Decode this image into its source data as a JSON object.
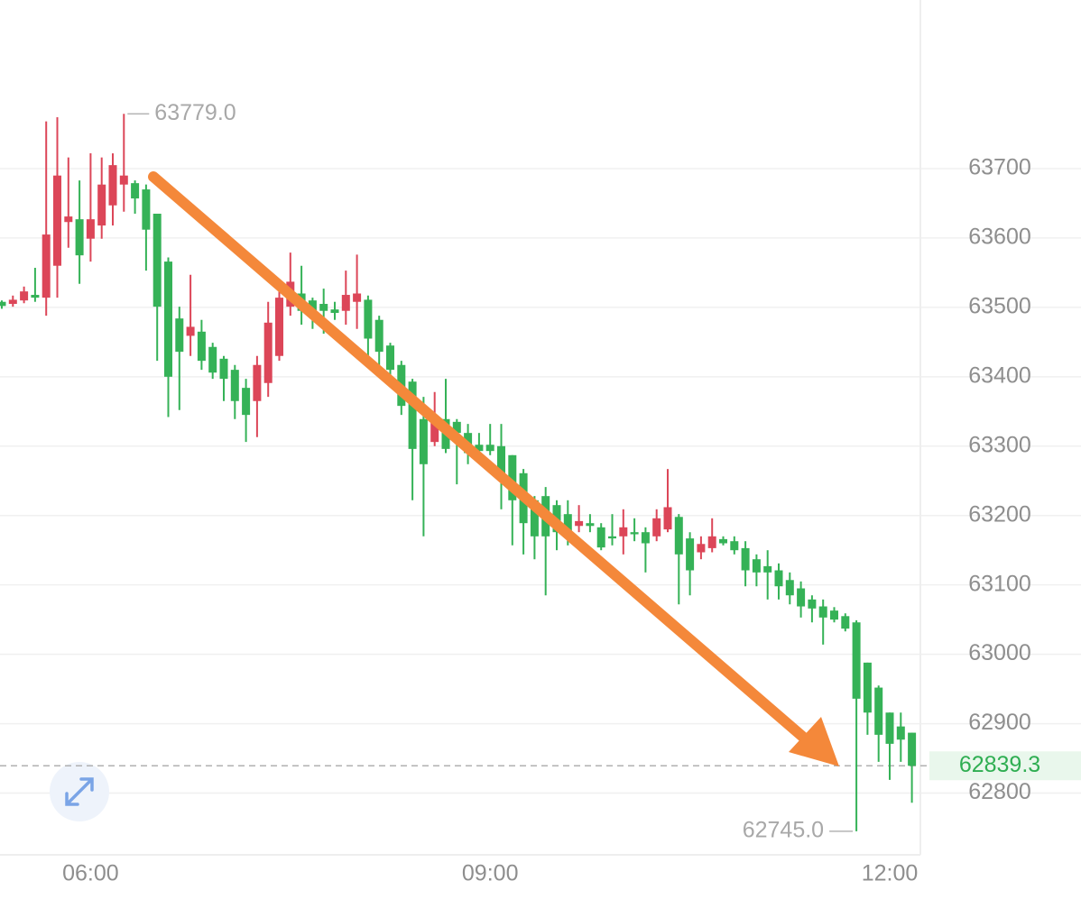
{
  "chart_data": {
    "type": "candlestick",
    "categories": [
      null,
      null,
      null,
      null,
      null,
      null,
      null,
      null,
      "06:00",
      null,
      null,
      null,
      null,
      null,
      null,
      null,
      null,
      null,
      null,
      null,
      null,
      null,
      null,
      null,
      null,
      null,
      null,
      null,
      null,
      null,
      null,
      null,
      null,
      null,
      null,
      null,
      null,
      null,
      null,
      null,
      null,
      null,
      null,
      null,
      "09:00",
      null,
      null,
      null,
      null,
      null,
      null,
      null,
      null,
      null,
      null,
      null,
      null,
      null,
      null,
      null,
      null,
      null,
      null,
      null,
      null,
      null,
      null,
      null,
      null,
      null,
      null,
      null,
      null,
      null,
      null,
      null,
      null,
      null,
      null,
      null,
      "12:00",
      null,
      null
    ],
    "open": [
      63508,
      63505,
      63510,
      63518,
      63514,
      63560,
      63623,
      63627,
      63599,
      63618,
      63647,
      63677,
      63679,
      63670,
      63635,
      63566,
      63484,
      63459,
      63465,
      63443,
      63426,
      63410,
      63384,
      63365,
      63391,
      63430,
      63501,
      63520,
      63510,
      63505,
      63497,
      63495,
      63508,
      63511,
      63482,
      63445,
      63417,
      63393,
      63339,
      63306,
      63339,
      63335,
      63319,
      63302,
      63302,
      63300,
      63287,
      63261,
      63222,
      63228,
      63215,
      63202,
      63185,
      63189,
      63183,
      63170,
      63170,
      63176,
      63176,
      63170,
      63180,
      63198,
      63167,
      63147,
      63153,
      63166,
      63163,
      63153,
      63137,
      63127,
      63121,
      63107,
      63095,
      63079,
      63069,
      63063,
      63055,
      63046,
      62988,
      62952,
      62916,
      62896,
      62887
    ],
    "high": [
      63510,
      63517,
      63530,
      63557,
      63768,
      63774,
      63716,
      63683,
      63722,
      63716,
      63722,
      63779,
      63683,
      63677,
      63635,
      63572,
      63501,
      63547,
      63482,
      63449,
      63430,
      63417,
      63397,
      63430,
      63508,
      63534,
      63579,
      63560,
      63514,
      63527,
      63508,
      63553,
      63576,
      63517,
      63488,
      63449,
      63423,
      63397,
      63371,
      63378,
      63397,
      63339,
      63332,
      63319,
      63332,
      63332,
      63287,
      63267,
      63228,
      63241,
      63222,
      63222,
      63215,
      63202,
      63189,
      63202,
      63209,
      63196,
      63183,
      63209,
      63267,
      63202,
      63176,
      63170,
      63196,
      63170,
      63170,
      63163,
      63144,
      63150,
      63131,
      63118,
      63105,
      63085,
      63079,
      63068,
      63059,
      63049,
      62988,
      62955,
      62916,
      62916,
      62887
    ],
    "low": [
      63498,
      63501,
      63506,
      63508,
      63488,
      63514,
      63586,
      63534,
      63566,
      63599,
      63618,
      63638,
      63635,
      63553,
      63423,
      63342,
      63352,
      63430,
      63410,
      63397,
      63365,
      63339,
      63306,
      63313,
      63371,
      63423,
      63488,
      63475,
      63469,
      63462,
      63482,
      63475,
      63469,
      63423,
      63404,
      63397,
      63345,
      63222,
      63170,
      63300,
      63290,
      63245,
      63274,
      63287,
      63287,
      63209,
      63157,
      63144,
      63137,
      63085,
      63150,
      63157,
      63176,
      63176,
      63150,
      63157,
      63144,
      63163,
      63118,
      63163,
      63176,
      63072,
      63085,
      63137,
      63147,
      63157,
      63144,
      63098,
      63098,
      63079,
      63079,
      63072,
      63053,
      63046,
      63014,
      63046,
      63033,
      62745,
      62884,
      62845,
      62819,
      62845,
      62786
    ],
    "close": [
      63502,
      63511,
      63523,
      63514,
      63605,
      63690,
      63631,
      63575,
      63627,
      63677,
      63705,
      63690,
      63657,
      63612,
      63501,
      63400,
      63436,
      63472,
      63423,
      63406,
      63397,
      63365,
      63345,
      63417,
      63478,
      63514,
      63537,
      63495,
      63488,
      63495,
      63492,
      63518,
      63520,
      63455,
      63436,
      63410,
      63358,
      63296,
      63274,
      63339,
      63296,
      63319,
      63290,
      63293,
      63293,
      63254,
      63222,
      63189,
      63170,
      63170,
      63176,
      63176,
      63192,
      63185,
      63154,
      63167,
      63183,
      63173,
      63160,
      63196,
      63212,
      63144,
      63121,
      63159,
      63170,
      63160,
      63150,
      63121,
      63118,
      63118,
      63098,
      63085,
      63069,
      63066,
      63053,
      63050,
      63037,
      62936,
      62916,
      62884,
      62871,
      62877,
      62839.3
    ],
    "up_color": "#dc4658",
    "down_color": "#35b257",
    "ylim": [
      62711,
      63943
    ],
    "yticks": [
      62800,
      62900,
      63000,
      63100,
      63200,
      63300,
      63400,
      63500,
      63600,
      63700
    ],
    "grid": true,
    "max_label": {
      "value": 63779,
      "label": "63779.0"
    },
    "min_label": {
      "value": 62745,
      "label": "62745.0"
    },
    "last_price": {
      "value": 62839.3,
      "label": "62839.3"
    }
  }
}
